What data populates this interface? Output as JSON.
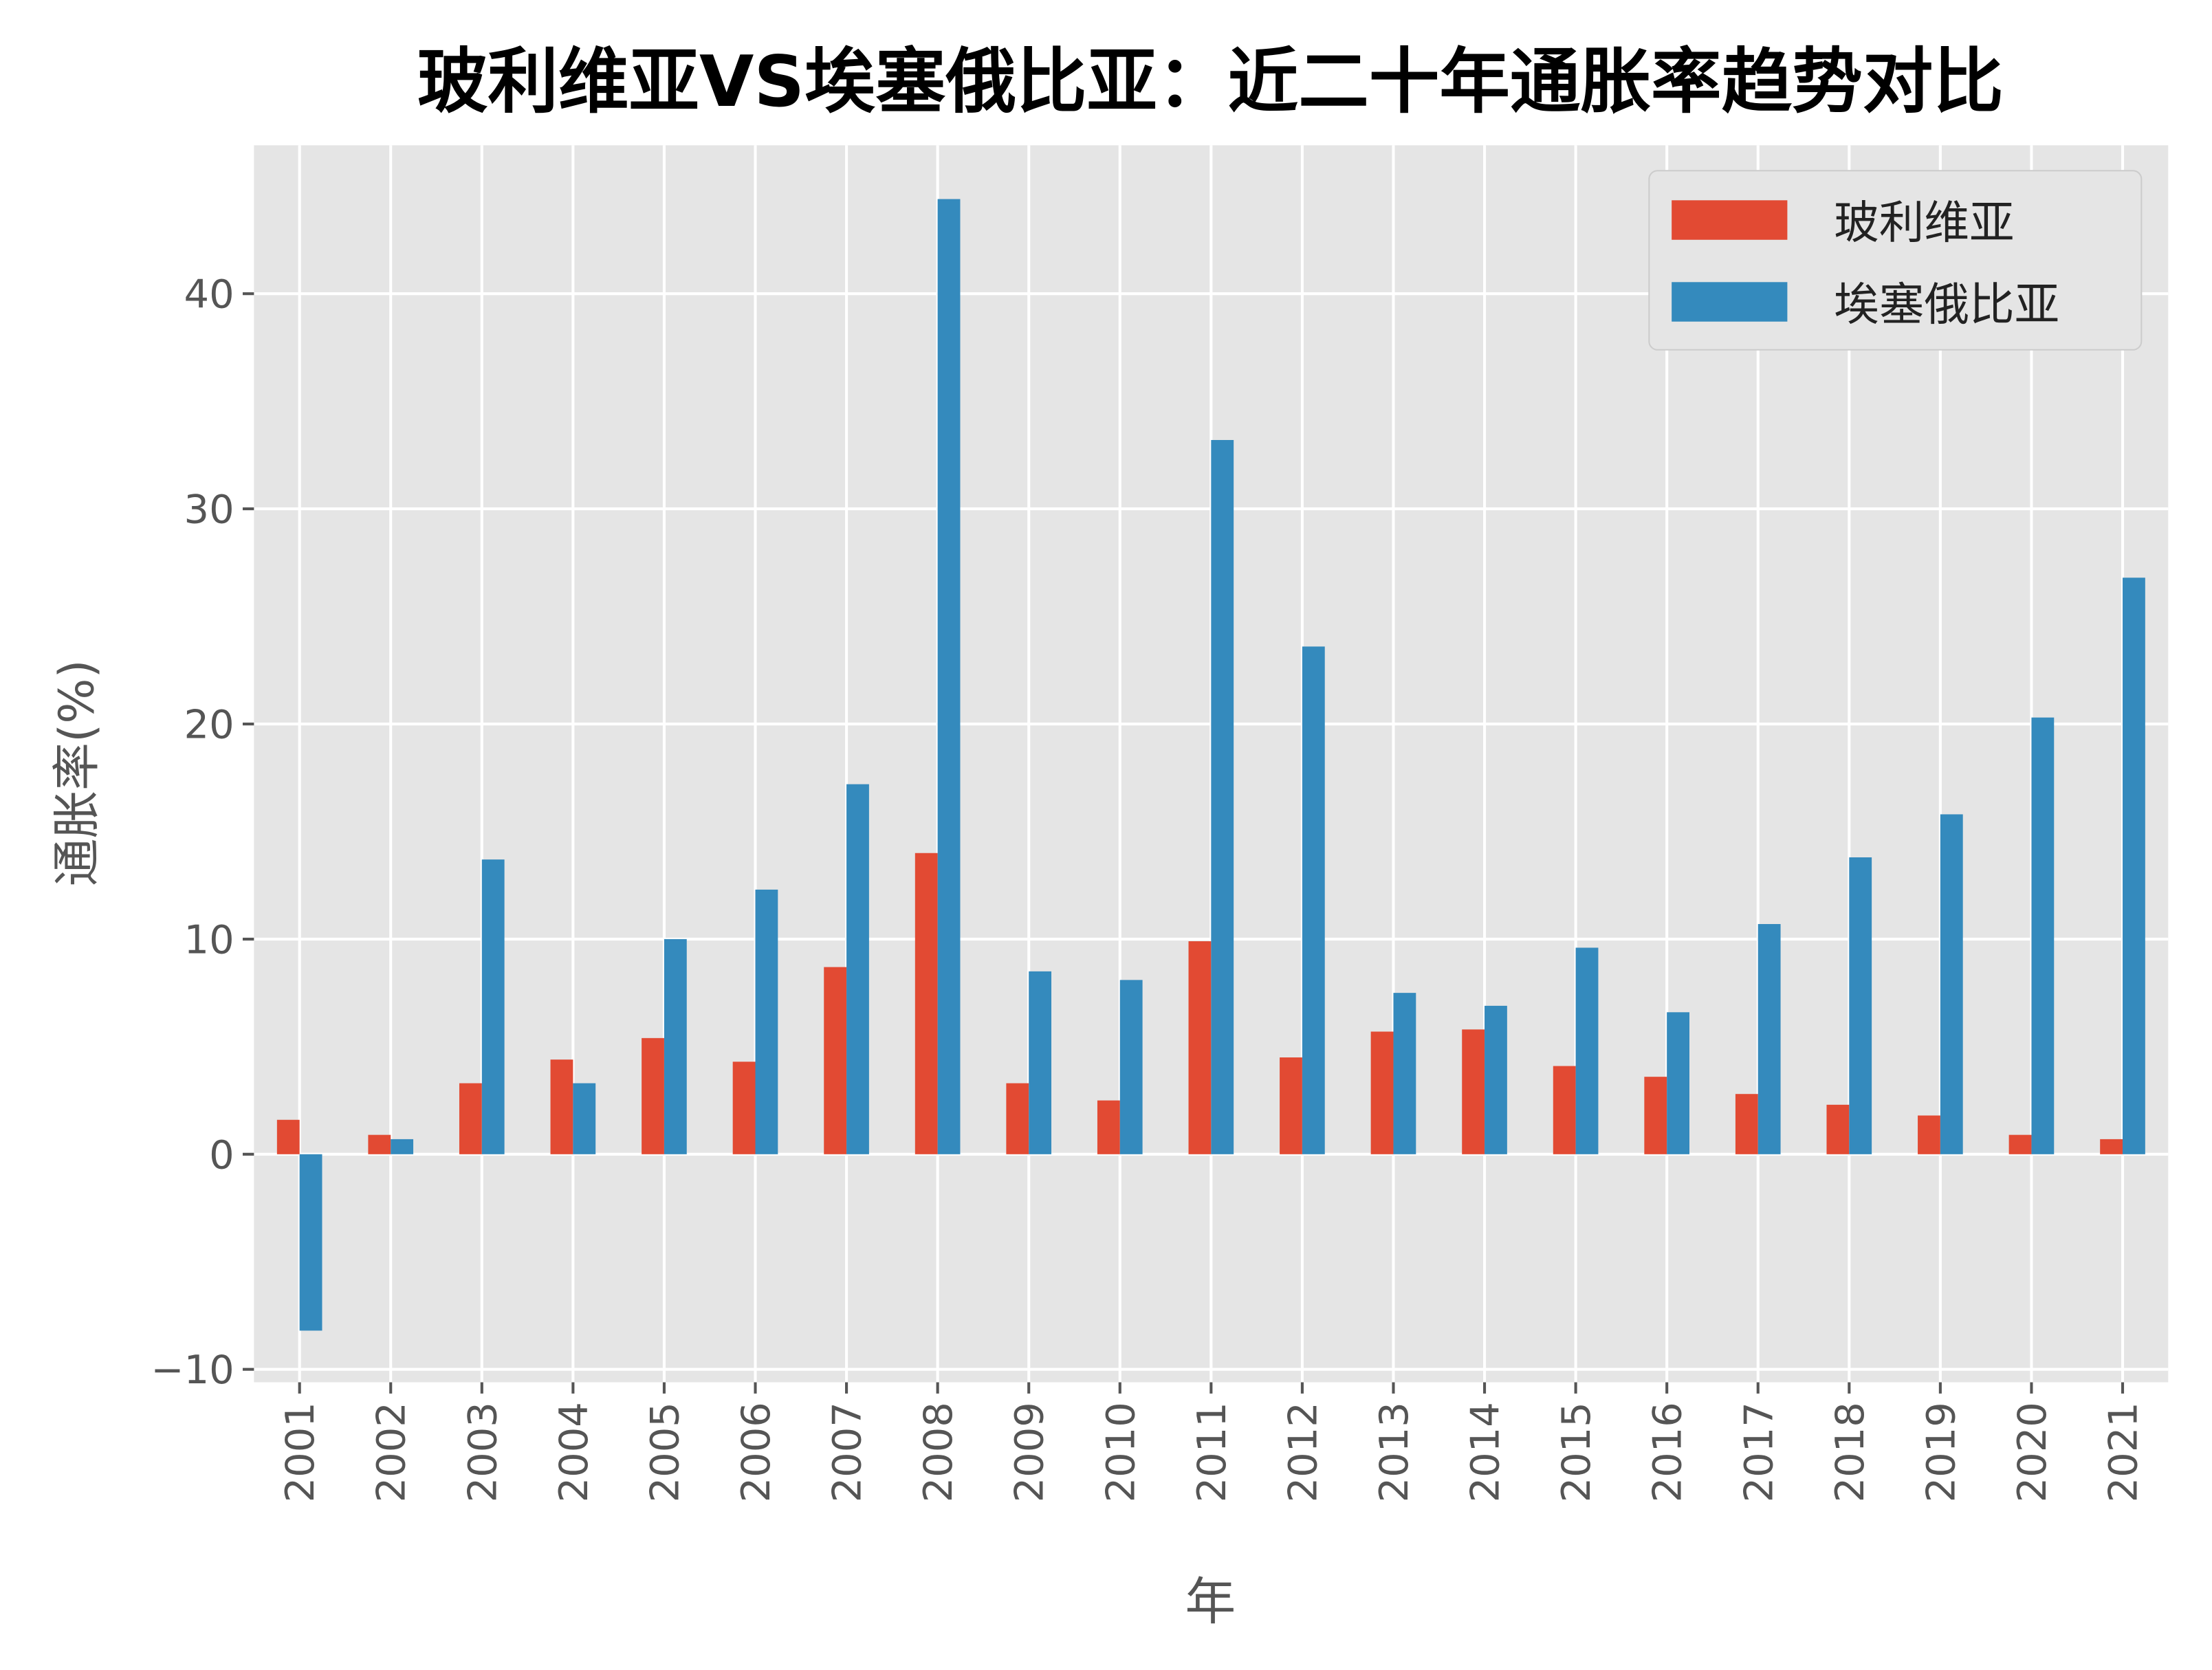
{
  "chart_data": {
    "type": "bar",
    "title": "玻利维亚VS埃塞俄比亚：近二十年通胀率趋势对比",
    "xlabel": "年",
    "ylabel": "通胀率(%)",
    "ylim": [
      -10.6,
      46.9
    ],
    "yticks": [
      -10,
      0,
      10,
      20,
      30,
      40
    ],
    "grid": true,
    "legend_position": "top-right",
    "categories": [
      "2001",
      "2002",
      "2003",
      "2004",
      "2005",
      "2006",
      "2007",
      "2008",
      "2009",
      "2010",
      "2011",
      "2012",
      "2013",
      "2014",
      "2015",
      "2016",
      "2017",
      "2018",
      "2019",
      "2020",
      "2021"
    ],
    "series": [
      {
        "name": "玻利维亚",
        "color": "#E24A33",
        "values": [
          1.6,
          0.9,
          3.3,
          4.4,
          5.4,
          4.3,
          8.7,
          14.0,
          3.3,
          2.5,
          9.9,
          4.5,
          5.7,
          5.8,
          4.1,
          3.6,
          2.8,
          2.3,
          1.8,
          0.9,
          0.7
        ]
      },
      {
        "name": "埃塞俄比亚",
        "color": "#348ABD",
        "values": [
          -8.2,
          0.7,
          13.7,
          3.3,
          10.0,
          12.3,
          17.2,
          44.4,
          8.5,
          8.1,
          33.2,
          23.6,
          7.5,
          6.9,
          9.6,
          6.6,
          10.7,
          13.8,
          15.8,
          20.3,
          26.8
        ]
      }
    ]
  }
}
